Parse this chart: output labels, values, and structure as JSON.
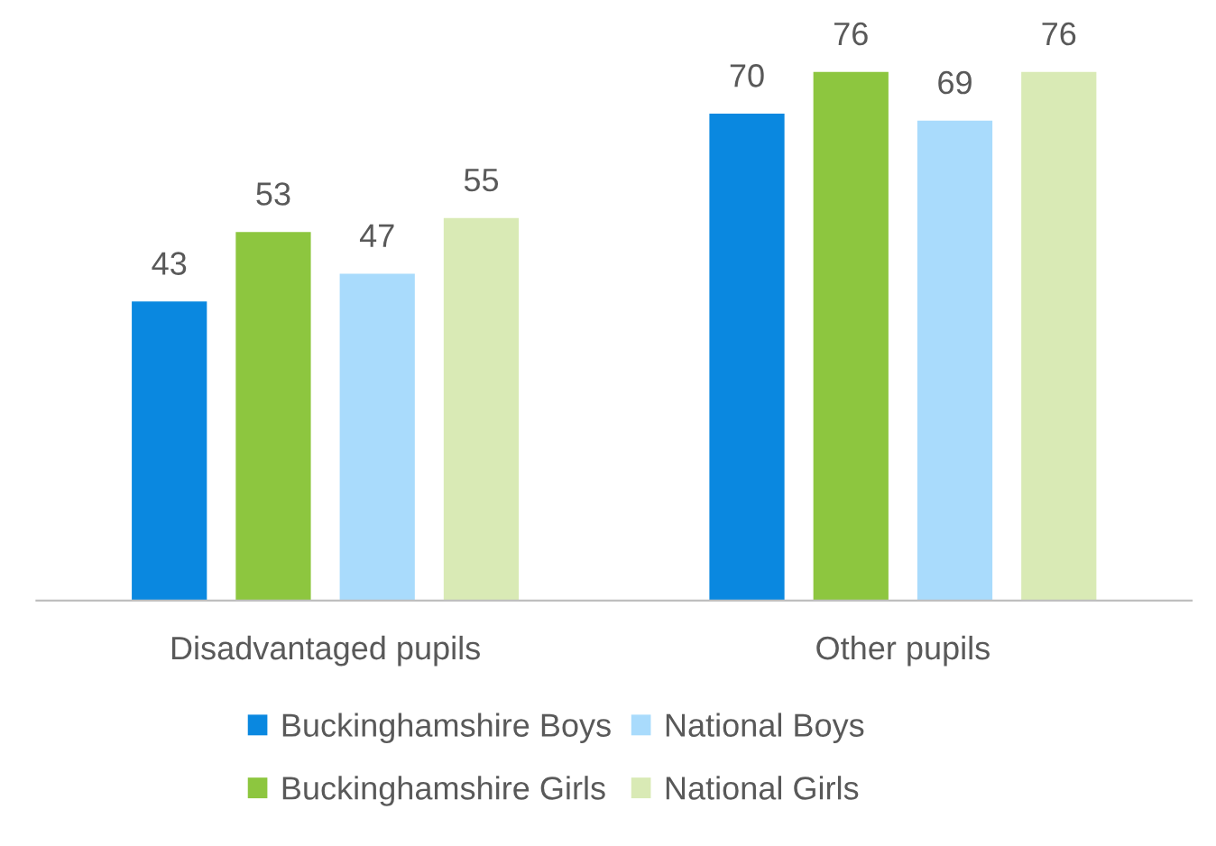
{
  "chart_data": {
    "type": "bar",
    "categories": [
      "Disadvantaged pupils",
      "Other pupils"
    ],
    "series": [
      {
        "name": "Buckinghamshire Boys",
        "color": "#0a88e0",
        "values": [
          43,
          70
        ]
      },
      {
        "name": "Buckinghamshire Girls",
        "color": "#8dc63f",
        "values": [
          53,
          76
        ]
      },
      {
        "name": "National Boys",
        "color": "#a9dbfc",
        "values": [
          47,
          69
        ]
      },
      {
        "name": "National Girls",
        "color": "#d9eab5",
        "values": [
          55,
          76
        ]
      }
    ],
    "data_labels": true,
    "grid": false,
    "legend": "bottom"
  }
}
